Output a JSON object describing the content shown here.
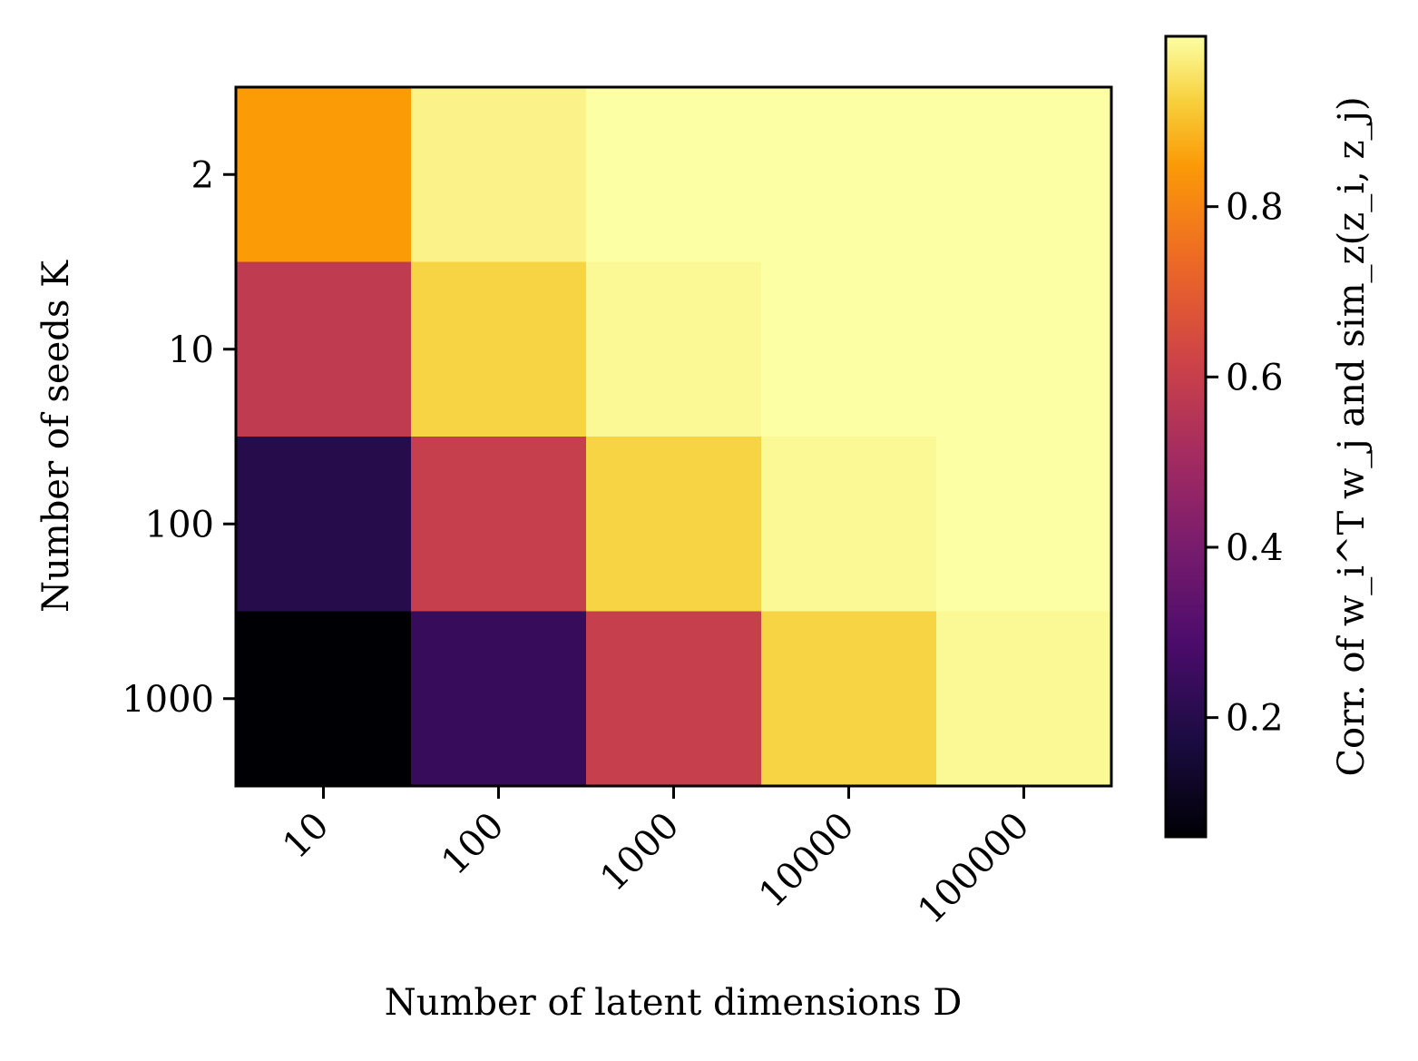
{
  "chart_data": {
    "type": "heatmap",
    "title": "",
    "xlabel": "Number of latent dimensions D",
    "ylabel": "Number of seeds K",
    "x_categories": [
      "10",
      "100",
      "1000",
      "10000",
      "100000"
    ],
    "y_categories": [
      "2",
      "10",
      "100",
      "1000"
    ],
    "values": [
      [
        0.85,
        0.98,
        1.0,
        1.0,
        1.0
      ],
      [
        0.58,
        0.93,
        0.99,
        1.0,
        1.0
      ],
      [
        0.2,
        0.6,
        0.93,
        0.99,
        1.0
      ],
      [
        0.06,
        0.24,
        0.6,
        0.93,
        0.99
      ]
    ],
    "colormap": "inferno",
    "colorbar": {
      "label": "Corr. of w_i^T w_j and sim_z(z_i, z_j)",
      "range": [
        0.06,
        1.0
      ],
      "ticks": [
        "0.2",
        "0.4",
        "0.6",
        "0.8"
      ],
      "tick_values": [
        0.2,
        0.4,
        0.6,
        0.8
      ]
    },
    "grid": false
  }
}
